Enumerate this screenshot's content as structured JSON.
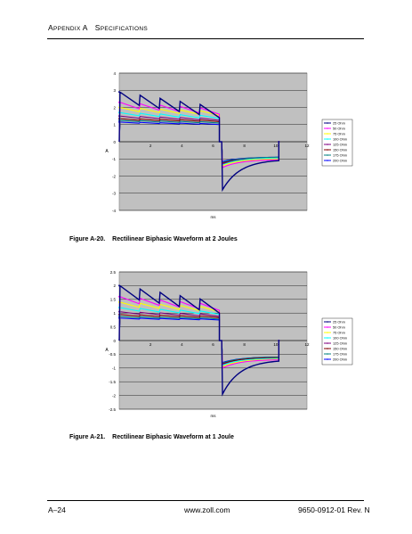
{
  "header": {
    "section_prefix": "A",
    "section_rest_1": "PPENDIX ",
    "section_letter": "A",
    "title_first": "S",
    "title_rest": "PECIFICATIONS"
  },
  "footer": {
    "page": "A–24",
    "url": "www.zoll.com",
    "doc": "9650-0912-01 Rev. N"
  },
  "captions": [
    {
      "figure": "Figure A-20.",
      "text": "Rectilinear Biphasic Waveform at 2 Joules"
    },
    {
      "figure": "Figure A-21.",
      "text": "Rectilinear Biphasic Waveform at 1 Joule"
    }
  ],
  "legend": [
    {
      "name": "25 Ohm",
      "color": "#000080"
    },
    {
      "name": "50 Ohm",
      "color": "#ff00ff"
    },
    {
      "name": "75 Ohm",
      "color": "#ffff00"
    },
    {
      "name": "100 Ohm",
      "color": "#00ffff"
    },
    {
      "name": "125 Ohm",
      "color": "#800080"
    },
    {
      "name": "150 Ohm",
      "color": "#800000"
    },
    {
      "name": "175 Ohm",
      "color": "#008080"
    },
    {
      "name": "200 Ohm",
      "color": "#0000ff"
    }
  ],
  "chart_data": [
    {
      "type": "line",
      "title": "",
      "xlabel": "ms",
      "ylabel": "A",
      "xlim": [
        0,
        12
      ],
      "ylim": [
        -4,
        4
      ],
      "x_ticks": [
        0,
        2,
        4,
        6,
        8,
        10,
        12
      ],
      "y_ticks": [
        -4,
        -3,
        -2,
        -1,
        0,
        1,
        2,
        3,
        4
      ],
      "grid": true,
      "legend_position": "right",
      "pos_end": 6.4,
      "neg_end": 10.2,
      "series": [
        {
          "name": "25 Ohm",
          "phase1_start": 2.9,
          "phase1_end": 2.0,
          "phase2_start": -2.8,
          "phase2_end": -1.1,
          "ripple": 0.6
        },
        {
          "name": "50 Ohm",
          "phase1_start": 2.3,
          "phase1_end": 1.9,
          "phase2_start": -1.5,
          "phase2_end": -1.05,
          "ripple": 0.3
        },
        {
          "name": "75 Ohm",
          "phase1_start": 2.0,
          "phase1_end": 1.75,
          "phase2_start": -1.4,
          "phase2_end": -1.0,
          "ripple": 0.2
        },
        {
          "name": "100 Ohm",
          "phase1_start": 1.7,
          "phase1_end": 1.5,
          "phase2_start": -1.35,
          "phase2_end": -0.95,
          "ripple": 0.15
        },
        {
          "name": "125 Ohm",
          "phase1_start": 1.5,
          "phase1_end": 1.35,
          "phase2_start": -1.3,
          "phase2_end": -0.95,
          "ripple": 0.1
        },
        {
          "name": "150 Ohm",
          "phase1_start": 1.35,
          "phase1_end": 1.25,
          "phase2_start": -1.25,
          "phase2_end": -0.95,
          "ripple": 0.08
        },
        {
          "name": "175 Ohm",
          "phase1_start": 1.25,
          "phase1_end": 1.15,
          "phase2_start": -1.2,
          "phase2_end": -0.9,
          "ripple": 0.06
        },
        {
          "name": "200 Ohm",
          "phase1_start": 1.15,
          "phase1_end": 1.05,
          "phase2_start": -1.15,
          "phase2_end": -0.9,
          "ripple": 0.05
        }
      ]
    },
    {
      "type": "line",
      "title": "",
      "xlabel": "ms",
      "ylabel": "A",
      "xlim": [
        0,
        12
      ],
      "ylim": [
        -2.5,
        2.5
      ],
      "x_ticks": [
        0,
        2,
        4,
        6,
        8,
        10,
        12
      ],
      "y_ticks": [
        -2.5,
        -2,
        -1.5,
        -1,
        -0.5,
        0,
        0.5,
        1,
        1.5,
        2,
        2.5
      ],
      "grid": true,
      "legend_position": "right",
      "pos_end": 6.4,
      "neg_end": 10.2,
      "series": [
        {
          "name": "25 Ohm",
          "phase1_start": 2.0,
          "phase1_end": 1.4,
          "phase2_start": -1.95,
          "phase2_end": -0.75,
          "ripple": 0.4
        },
        {
          "name": "50 Ohm",
          "phase1_start": 1.6,
          "phase1_end": 1.3,
          "phase2_start": -1.0,
          "phase2_end": -0.7,
          "ripple": 0.2
        },
        {
          "name": "75 Ohm",
          "phase1_start": 1.4,
          "phase1_end": 1.2,
          "phase2_start": -0.95,
          "phase2_end": -0.68,
          "ripple": 0.15
        },
        {
          "name": "100 Ohm",
          "phase1_start": 1.2,
          "phase1_end": 1.05,
          "phase2_start": -0.9,
          "phase2_end": -0.65,
          "ripple": 0.1
        },
        {
          "name": "125 Ohm",
          "phase1_start": 1.05,
          "phase1_end": 0.95,
          "phase2_start": -0.88,
          "phase2_end": -0.65,
          "ripple": 0.07
        },
        {
          "name": "150 Ohm",
          "phase1_start": 0.95,
          "phase1_end": 0.88,
          "phase2_start": -0.85,
          "phase2_end": -0.62,
          "ripple": 0.05
        },
        {
          "name": "175 Ohm",
          "phase1_start": 0.88,
          "phase1_end": 0.82,
          "phase2_start": -0.82,
          "phase2_end": -0.6,
          "ripple": 0.04
        },
        {
          "name": "200 Ohm",
          "phase1_start": 0.82,
          "phase1_end": 0.78,
          "phase2_start": -0.8,
          "phase2_end": -0.6,
          "ripple": 0.03
        }
      ]
    }
  ]
}
